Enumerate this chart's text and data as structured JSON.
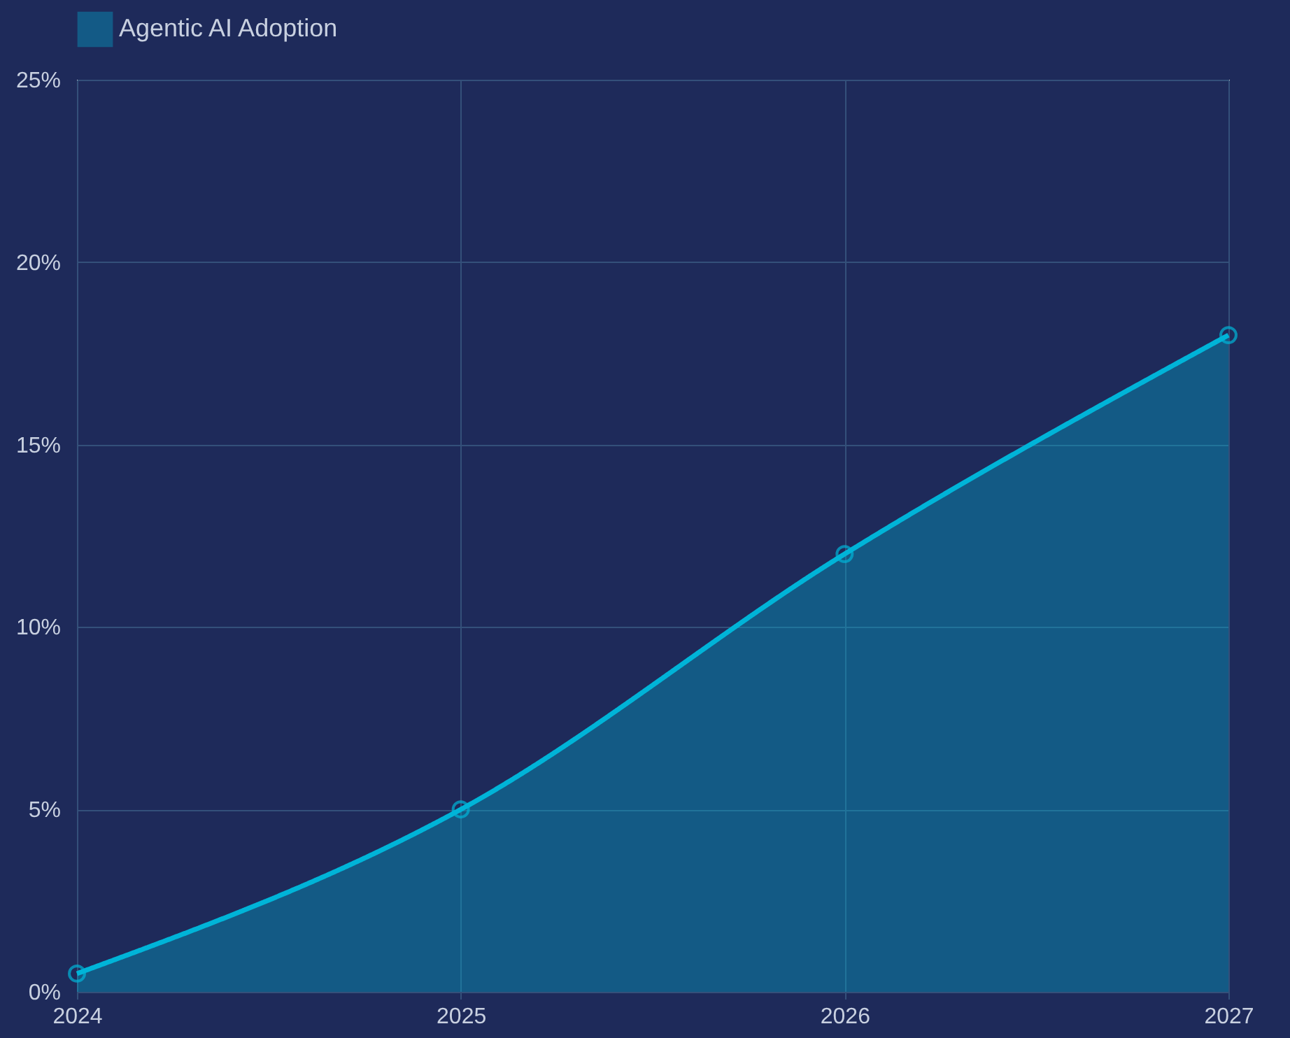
{
  "chart_data": {
    "type": "area",
    "categories": [
      "2024",
      "2025",
      "2026",
      "2027"
    ],
    "series": [
      {
        "name": "Agentic AI Adoption",
        "color": "#00b4d8",
        "values": [
          0.5,
          5,
          12,
          18
        ]
      }
    ],
    "ylim": [
      0,
      25
    ],
    "yticks": [
      {
        "value": 0,
        "label": "0%"
      },
      {
        "value": 5,
        "label": "5%"
      },
      {
        "value": 10,
        "label": "10%"
      },
      {
        "value": 15,
        "label": "15%"
      },
      {
        "value": 20,
        "label": "20%"
      },
      {
        "value": 25,
        "label": "25%"
      }
    ],
    "grid": true,
    "legend": "top",
    "marker": "circle",
    "line_style": "solid"
  }
}
